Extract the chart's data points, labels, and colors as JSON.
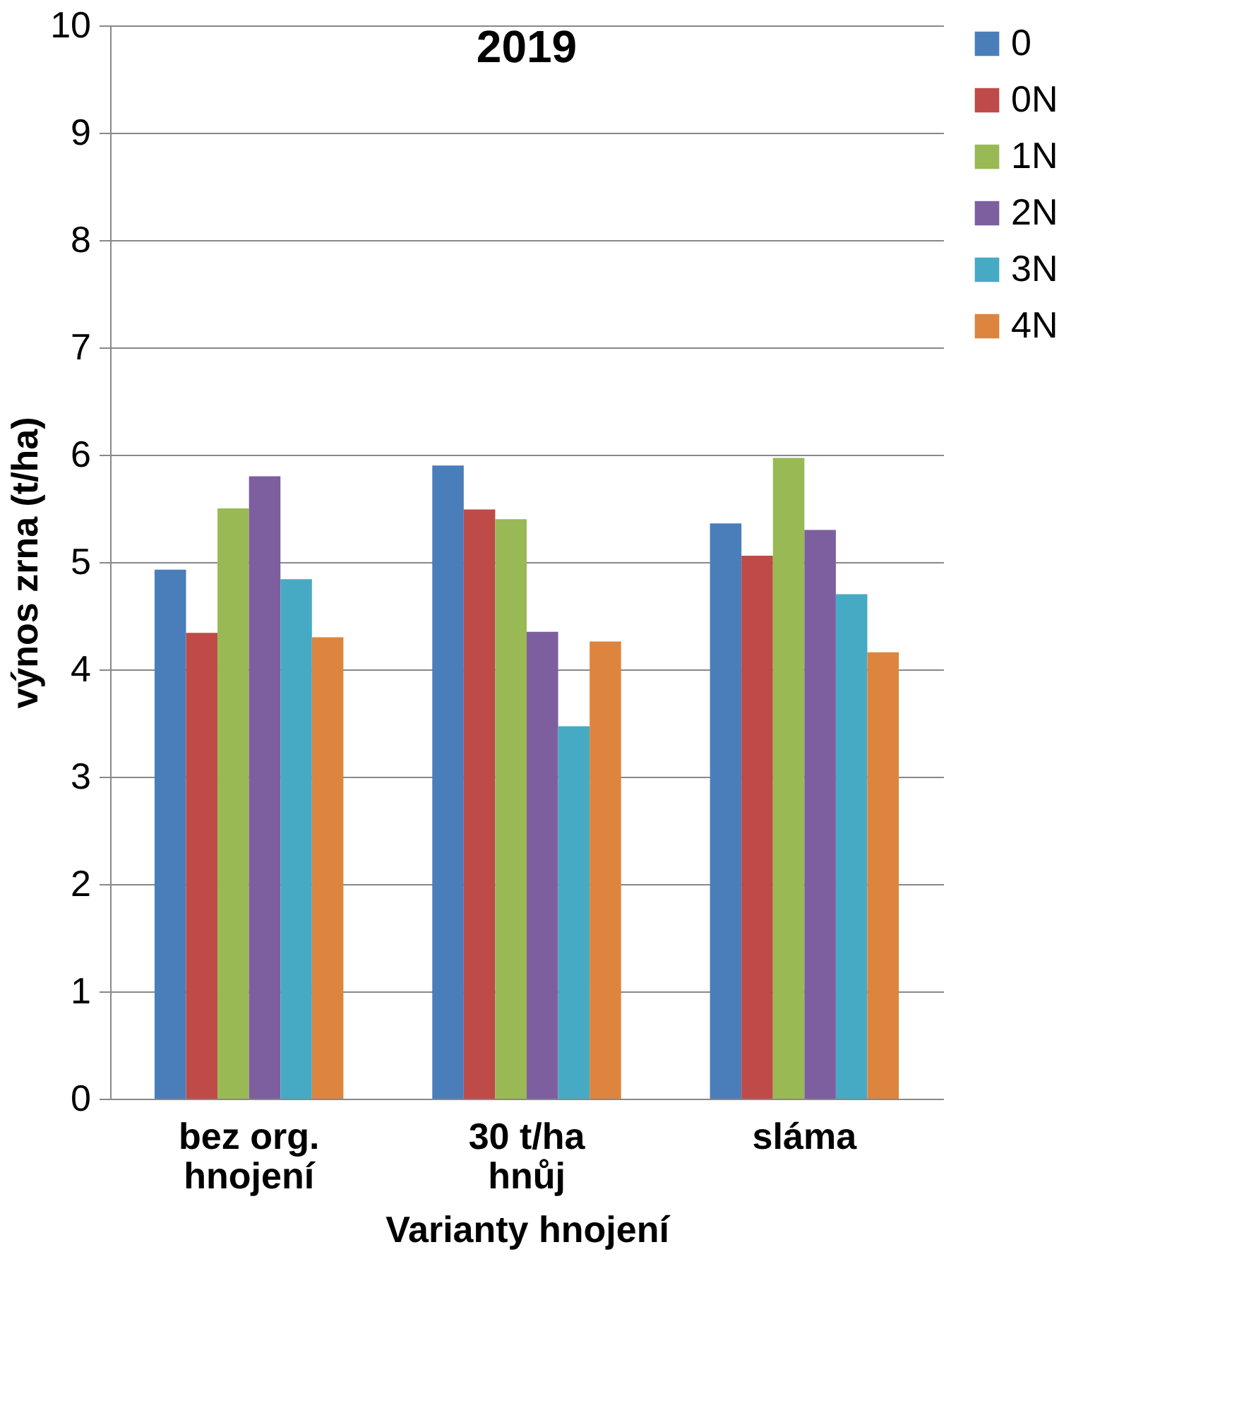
{
  "chart_data": {
    "type": "bar",
    "title": "2019",
    "xlabel": "Varianty hnojení",
    "ylabel": "výnos zrna (t/ha)",
    "categories": [
      "bez org.\nhnojení",
      "30 t/ha\nhnůj",
      "sláma"
    ],
    "series": [
      {
        "name": "0",
        "color": "#4a7ebb",
        "values": [
          4.93,
          5.9,
          5.36
        ]
      },
      {
        "name": "0N",
        "color": "#be4b48",
        "values": [
          4.34,
          5.49,
          5.06
        ]
      },
      {
        "name": "1N",
        "color": "#98b954",
        "values": [
          5.5,
          5.4,
          5.97
        ]
      },
      {
        "name": "2N",
        "color": "#7d5fa0",
        "values": [
          5.8,
          4.35,
          5.3
        ]
      },
      {
        "name": "3N",
        "color": "#46aac5",
        "values": [
          4.84,
          3.47,
          4.7
        ]
      },
      {
        "name": "4N",
        "color": "#dd853e",
        "values": [
          4.3,
          4.26,
          4.16
        ]
      }
    ],
    "ylim": [
      0,
      10
    ],
    "yticks": [
      0,
      1,
      2,
      3,
      4,
      5,
      6,
      7,
      8,
      9,
      10
    ],
    "grid": "y",
    "legend": "right"
  }
}
